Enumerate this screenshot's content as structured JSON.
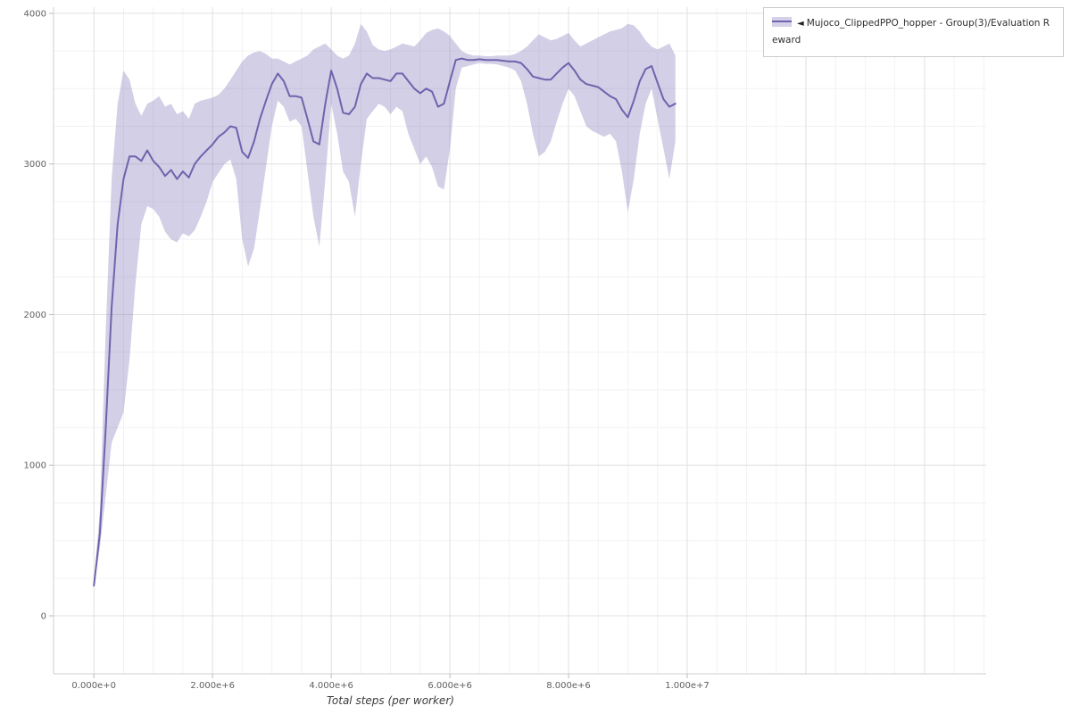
{
  "chart_data": {
    "type": "line",
    "title": "",
    "xlabel": "Total steps (per worker)",
    "ylabel": "",
    "legend_position": "top_right_outside",
    "grid": true,
    "x_unit_multiplier": 1000000,
    "x_millions": [
      0.0,
      0.1,
      0.2,
      0.3,
      0.4,
      0.5,
      0.6,
      0.7,
      0.8,
      0.9,
      1.0,
      1.1,
      1.2,
      1.3,
      1.4,
      1.5,
      1.6,
      1.7,
      1.8,
      1.9,
      2.0,
      2.1,
      2.2,
      2.3,
      2.4,
      2.5,
      2.6,
      2.7,
      2.8,
      2.9,
      3.0,
      3.1,
      3.2,
      3.3,
      3.4,
      3.5,
      3.6,
      3.7,
      3.8,
      3.9,
      4.0,
      4.1,
      4.2,
      4.3,
      4.4,
      4.5,
      4.6,
      4.7,
      4.8,
      4.9,
      5.0,
      5.1,
      5.2,
      5.3,
      5.4,
      5.5,
      5.6,
      5.7,
      5.8,
      5.9,
      6.0,
      6.1,
      6.2,
      6.3,
      6.4,
      6.5,
      6.6,
      6.7,
      6.8,
      6.9,
      7.0,
      7.1,
      7.2,
      7.3,
      7.4,
      7.5,
      7.6,
      7.7,
      7.8,
      7.9,
      8.0,
      8.1,
      8.2,
      8.3,
      8.4,
      8.5,
      8.6,
      8.7,
      8.8,
      8.9,
      9.0,
      9.1,
      9.2,
      9.3,
      9.4,
      9.5,
      9.6,
      9.7,
      9.8
    ],
    "series": [
      {
        "name": "Mujoco_ClippedPPO_hopper - Group(3)/Evaluation Reward",
        "legend_marker": "◄",
        "line_color": "#6e64ad",
        "band_fill": "#756bb1",
        "band_opacity": 0.32,
        "swatch_fill": "#d3d0e8",
        "mean": [
          200,
          550,
          1250,
          2050,
          2600,
          2900,
          3050,
          3050,
          3020,
          3090,
          3020,
          2980,
          2920,
          2960,
          2900,
          2950,
          2910,
          3000,
          3050,
          3090,
          3130,
          3180,
          3210,
          3250,
          3240,
          3080,
          3040,
          3150,
          3300,
          3420,
          3530,
          3600,
          3550,
          3450,
          3450,
          3440,
          3300,
          3150,
          3130,
          3400,
          3620,
          3500,
          3340,
          3330,
          3380,
          3530,
          3600,
          3570,
          3570,
          3560,
          3550,
          3600,
          3600,
          3550,
          3500,
          3470,
          3500,
          3480,
          3380,
          3400,
          3550,
          3690,
          3700,
          3690,
          3690,
          3695,
          3690,
          3690,
          3690,
          3685,
          3680,
          3680,
          3670,
          3630,
          3580,
          3570,
          3560,
          3560,
          3600,
          3640,
          3670,
          3620,
          3560,
          3530,
          3520,
          3510,
          3480,
          3450,
          3430,
          3360,
          3310,
          3420,
          3550,
          3630,
          3650,
          3540,
          3430,
          3380,
          3400
        ],
        "band_low": [
          190,
          450,
          800,
          1150,
          1250,
          1350,
          1700,
          2200,
          2600,
          2720,
          2700,
          2650,
          2550,
          2500,
          2480,
          2540,
          2520,
          2560,
          2650,
          2750,
          2880,
          2940,
          3000,
          3030,
          2900,
          2500,
          2320,
          2440,
          2700,
          2980,
          3250,
          3420,
          3380,
          3280,
          3300,
          3250,
          2950,
          2650,
          2450,
          2900,
          3400,
          3200,
          2950,
          2880,
          2650,
          3000,
          3300,
          3350,
          3400,
          3380,
          3330,
          3380,
          3350,
          3200,
          3100,
          3000,
          3050,
          2980,
          2850,
          2830,
          3100,
          3500,
          3640,
          3650,
          3660,
          3670,
          3665,
          3665,
          3660,
          3650,
          3640,
          3620,
          3550,
          3400,
          3200,
          3050,
          3080,
          3150,
          3280,
          3400,
          3500,
          3450,
          3350,
          3250,
          3220,
          3200,
          3180,
          3200,
          3150,
          2950,
          2680,
          2900,
          3200,
          3400,
          3500,
          3300,
          3100,
          2900,
          3150
        ],
        "band_high": [
          210,
          700,
          1900,
          2900,
          3400,
          3620,
          3560,
          3400,
          3320,
          3400,
          3420,
          3450,
          3380,
          3400,
          3330,
          3350,
          3300,
          3400,
          3420,
          3430,
          3440,
          3460,
          3500,
          3560,
          3620,
          3680,
          3720,
          3740,
          3750,
          3730,
          3700,
          3700,
          3680,
          3660,
          3680,
          3700,
          3720,
          3760,
          3780,
          3800,
          3760,
          3720,
          3700,
          3720,
          3800,
          3930,
          3880,
          3790,
          3760,
          3750,
          3760,
          3780,
          3800,
          3790,
          3780,
          3820,
          3870,
          3890,
          3900,
          3880,
          3850,
          3800,
          3750,
          3730,
          3720,
          3720,
          3715,
          3715,
          3720,
          3720,
          3720,
          3730,
          3750,
          3780,
          3820,
          3860,
          3840,
          3820,
          3830,
          3850,
          3870,
          3820,
          3780,
          3800,
          3820,
          3840,
          3860,
          3880,
          3890,
          3900,
          3930,
          3920,
          3880,
          3820,
          3780,
          3760,
          3780,
          3800,
          3720
        ]
      }
    ],
    "x_axis": {
      "tick_values_millions": [
        0,
        2,
        4,
        6,
        8,
        10
      ],
      "tick_labels": [
        "0.000e+0",
        "2.000e+6",
        "4.000e+6",
        "6.000e+6",
        "8.000e+6",
        "1.000e+7"
      ],
      "minor_step_millions": 0.5,
      "major_step_millions": 2,
      "range_millions": [
        -0.68,
        15.04
      ]
    },
    "y_axis": {
      "tick_values": [
        0,
        1000,
        2000,
        3000,
        4000
      ],
      "tick_labels": [
        "0",
        "1000",
        "2000",
        "3000",
        "4000"
      ],
      "minor_step": 250,
      "major_step": 1000,
      "range": [
        -385,
        4041
      ]
    },
    "palette": {
      "grid_minor": "#f2f2f2",
      "grid_major": "#e0e0e0",
      "axis_line": "#cfcfcf",
      "tick_mark": "#bbbbbb",
      "tick_label": "#5f5f5f",
      "axis_title": "#3b3b3b",
      "legend_border": "#cccccc",
      "legend_text": "#2f2f2f"
    }
  }
}
